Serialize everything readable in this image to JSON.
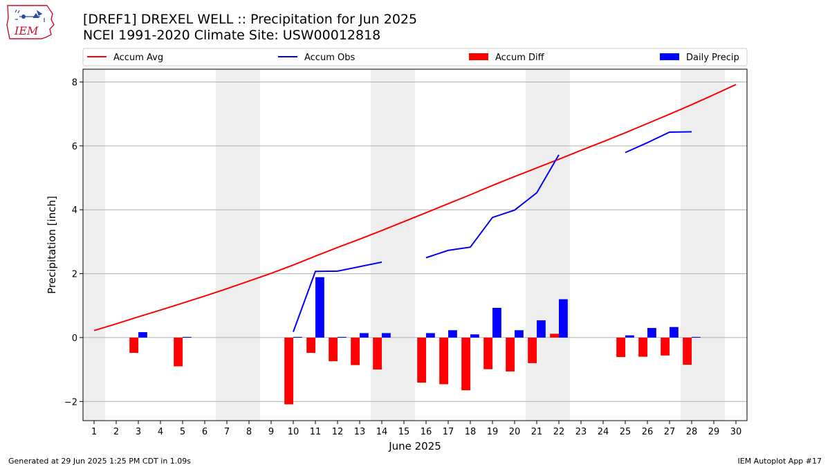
{
  "logo": {
    "text": "IEM",
    "icon": "iowa-state-outline-icon"
  },
  "header": {
    "title_line1": "[DREF1] DREXEL WELL :: Precipitation for Jun 2025",
    "title_line2": "NCEI 1991-2020 Climate Site: USW00012818"
  },
  "footer": {
    "left": "Generated at 29 Jun 2025 1:25 PM CDT in 1.09s",
    "right": "IEM Autoplot App #17"
  },
  "colors": {
    "avg": "#ff0000",
    "obs": "#0000ff",
    "diff": "#ff0000",
    "daily": "#0000ff",
    "weekend_band": "#eeeeee",
    "grid": "#b0b0b0"
  },
  "chart_data": {
    "type": "bar",
    "xlabel": "June 2025",
    "ylabel": "Precipitation [inch]",
    "x": [
      1,
      2,
      3,
      4,
      5,
      6,
      7,
      8,
      9,
      10,
      11,
      12,
      13,
      14,
      15,
      16,
      17,
      18,
      19,
      20,
      21,
      22,
      23,
      24,
      25,
      26,
      27,
      28,
      29,
      30
    ],
    "xlim": [
      0.5,
      30.5
    ],
    "ylim": [
      -2.6,
      8.4
    ],
    "yticks": [
      -2,
      0,
      2,
      4,
      6,
      8
    ],
    "ytick_labels": [
      "−2",
      "0",
      "2",
      "4",
      "6",
      "8"
    ],
    "grid": "horizontal",
    "legend_position": "top",
    "weekend_bands": [
      [
        1,
        1
      ],
      [
        7,
        8
      ],
      [
        14,
        15
      ],
      [
        21,
        22
      ],
      [
        28,
        29
      ]
    ],
    "series": [
      {
        "name": "Accum Avg",
        "kind": "line",
        "values": [
          0.22,
          0.43,
          0.65,
          0.86,
          1.08,
          1.3,
          1.53,
          1.77,
          2.01,
          2.27,
          2.55,
          2.82,
          3.08,
          3.35,
          3.63,
          3.91,
          4.19,
          4.47,
          4.76,
          5.04,
          5.31,
          5.58,
          5.86,
          6.13,
          6.41,
          6.7,
          6.99,
          7.29,
          7.6,
          7.92
        ]
      },
      {
        "name": "Accum Obs",
        "kind": "line",
        "values": [
          null,
          null,
          null,
          null,
          null,
          null,
          null,
          null,
          null,
          0.18,
          2.07,
          2.08,
          2.22,
          2.36,
          null,
          2.5,
          2.73,
          2.83,
          3.76,
          3.99,
          4.53,
          5.72,
          null,
          null,
          5.79,
          6.1,
          6.43,
          6.44,
          null,
          null
        ]
      },
      {
        "name": "Accum Diff",
        "kind": "bar",
        "values": [
          null,
          null,
          -0.48,
          null,
          -0.9,
          null,
          null,
          null,
          null,
          -2.09,
          -0.48,
          -0.74,
          -0.86,
          -1.0,
          null,
          -1.41,
          -1.46,
          -1.65,
          -0.99,
          -1.06,
          -0.8,
          0.12,
          null,
          null,
          -0.61,
          -0.6,
          -0.56,
          -0.85,
          null,
          null
        ]
      },
      {
        "name": "Daily Precip",
        "kind": "bar",
        "values": [
          null,
          null,
          0.17,
          null,
          0.02,
          null,
          null,
          null,
          null,
          0.02,
          1.89,
          0.02,
          0.14,
          0.14,
          null,
          0.14,
          0.23,
          0.1,
          0.93,
          0.23,
          0.54,
          1.2,
          null,
          null,
          0.07,
          0.3,
          0.33,
          0.02,
          null,
          null
        ]
      }
    ]
  }
}
